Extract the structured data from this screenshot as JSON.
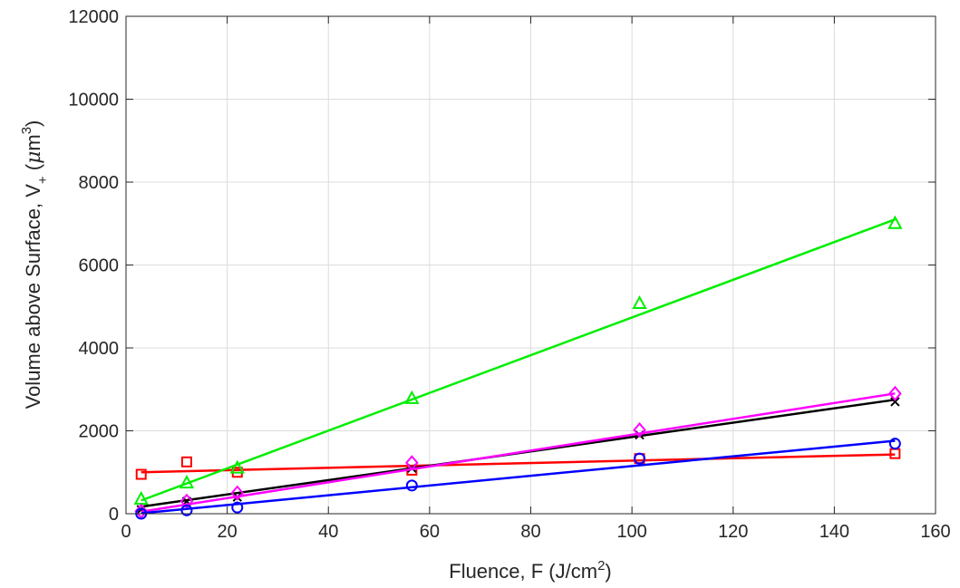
{
  "chart_data": {
    "type": "scatter",
    "title": "",
    "xlabel": {
      "main": "Fluence, F (J/cm",
      "sup": "2",
      "tail": ")"
    },
    "ylabel": {
      "pre": "Volume above Surface, V",
      "sub": "+",
      "open": " (",
      "greek": "μ",
      "m": "m",
      "sup": "3",
      "close": ")"
    },
    "xlim": [
      0,
      160
    ],
    "ylim": [
      0,
      12000
    ],
    "xticks": [
      0,
      20,
      40,
      60,
      80,
      100,
      120,
      140,
      160
    ],
    "yticks": [
      0,
      2000,
      4000,
      6000,
      8000,
      10000,
      12000
    ],
    "grid": true,
    "legend": "none",
    "series": [
      {
        "color": "#ff0000",
        "marker": "square",
        "points": [
          [
            3,
            950
          ],
          [
            12,
            1250
          ],
          [
            22,
            1000
          ],
          [
            56.5,
            1050
          ],
          [
            101.5,
            1330
          ],
          [
            152,
            1450
          ]
        ],
        "fit": [
          [
            3,
            1000
          ],
          [
            152,
            1430
          ]
        ]
      },
      {
        "color": "#00ee00",
        "marker": "triangle",
        "points": [
          [
            3,
            350
          ],
          [
            12,
            740
          ],
          [
            22,
            1100
          ],
          [
            56.5,
            2780
          ],
          [
            101.5,
            5070
          ],
          [
            152,
            7000
          ]
        ],
        "fit": [
          [
            3,
            320
          ],
          [
            152,
            7100
          ]
        ]
      },
      {
        "color": "#000000",
        "marker": "x",
        "points": [
          [
            3,
            100
          ],
          [
            12,
            300
          ],
          [
            22,
            400
          ],
          [
            56.5,
            1100
          ],
          [
            101.5,
            1900
          ],
          [
            152,
            2700
          ]
        ],
        "fit": [
          [
            3,
            170
          ],
          [
            152,
            2750
          ]
        ]
      },
      {
        "color": "#ff00ff",
        "marker": "diamond",
        "points": [
          [
            3,
            60
          ],
          [
            12,
            300
          ],
          [
            22,
            500
          ],
          [
            56.5,
            1230
          ],
          [
            101.5,
            2020
          ],
          [
            152,
            2900
          ]
        ],
        "fit": [
          [
            3,
            50
          ],
          [
            152,
            2900
          ]
        ]
      },
      {
        "color": "#0000ff",
        "marker": "circle",
        "points": [
          [
            3,
            0
          ],
          [
            12,
            80
          ],
          [
            22,
            150
          ],
          [
            56.5,
            680
          ],
          [
            101.5,
            1330
          ],
          [
            152,
            1690
          ]
        ],
        "fit": [
          [
            3,
            10
          ],
          [
            152,
            1760
          ]
        ]
      }
    ]
  }
}
